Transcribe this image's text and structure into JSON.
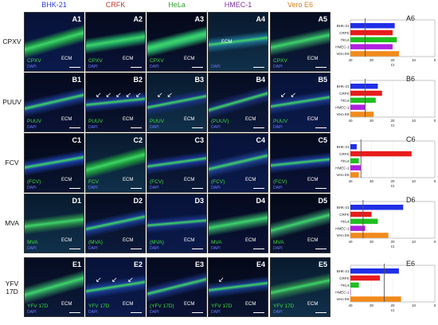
{
  "cell_lines": [
    {
      "name": "BHK-21",
      "color": "#2d3bd6"
    },
    {
      "name": "CRFK",
      "color": "#c0392b"
    },
    {
      "name": "HeLa",
      "color": "#2ea12e"
    },
    {
      "name": "HMEC-1",
      "color": "#7b2fa0"
    },
    {
      "name": "Vero E6",
      "color": "#d4801c"
    }
  ],
  "bar_colors": [
    "#1f2fe6",
    "#e81c1c",
    "#1fbf1f",
    "#b020e0",
    "#f28a1a"
  ],
  "rows": [
    {
      "label": "CPXV",
      "label2": "",
      "virus_label": "CPXV",
      "panels": [
        {
          "id": "A1",
          "virus_label": "CPXV",
          "ecm": "ECM",
          "arrows": ""
        },
        {
          "id": "A2",
          "virus_label": "CPXV",
          "ecm": "ECM",
          "arrows": ""
        },
        {
          "id": "A3",
          "virus_label": "CPXV",
          "ecm": "ECM",
          "arrows": ""
        },
        {
          "id": "A4",
          "virus_label": "",
          "ecm": "ECM",
          "arrows": ""
        },
        {
          "id": "A5",
          "virus_label": "CPXV",
          "ecm": "ECM",
          "arrows": ""
        }
      ]
    },
    {
      "label": "PUUV",
      "label2": "",
      "panels": [
        {
          "id": "B1",
          "virus_label": "PUUV",
          "ecm": "ECM",
          "arrows": ""
        },
        {
          "id": "B2",
          "virus_label": "PUUV",
          "ecm": "ECM",
          "arrows": "↙↙↙↙↙"
        },
        {
          "id": "B3",
          "virus_label": "PUUV",
          "ecm": "ECM",
          "arrows": "↙↙"
        },
        {
          "id": "B4",
          "virus_label": "(PUUV)",
          "ecm": "ECM",
          "arrows": ""
        },
        {
          "id": "B5",
          "virus_label": "PUUV",
          "ecm": "ECM",
          "arrows": "↙↙"
        }
      ]
    },
    {
      "label": "FCV",
      "label2": "",
      "panels": [
        {
          "id": "C1",
          "virus_label": "(FCV)",
          "ecm": "ECM",
          "arrows": ""
        },
        {
          "id": "C2",
          "virus_label": "FCV",
          "ecm": "ECM",
          "arrows": ""
        },
        {
          "id": "C3",
          "virus_label": "(FCV)",
          "ecm": "ECM",
          "arrows": ""
        },
        {
          "id": "C4",
          "virus_label": "(FCV)",
          "ecm": "ECM",
          "arrows": ""
        },
        {
          "id": "C5",
          "virus_label": "(FCV)",
          "ecm": "ECM",
          "arrows": ""
        }
      ]
    },
    {
      "label": "MVA",
      "label2": "",
      "panels": [
        {
          "id": "D1",
          "virus_label": "MVA",
          "ecm": "ECM",
          "arrows": ""
        },
        {
          "id": "D2",
          "virus_label": "(MVA)",
          "ecm": "ECM",
          "arrows": ""
        },
        {
          "id": "D3",
          "virus_label": "(MVA)",
          "ecm": "ECM",
          "arrows": ""
        },
        {
          "id": "D4",
          "virus_label": "MVA",
          "ecm": "ECM",
          "arrows": ""
        },
        {
          "id": "D5",
          "virus_label": "MVA",
          "ecm": "ECM",
          "arrows": ""
        }
      ]
    },
    {
      "label": "YFV",
      "label2": "17D",
      "panels": [
        {
          "id": "E1",
          "virus_label": "YFV 17D",
          "ecm": "ECM",
          "arrows": ""
        },
        {
          "id": "E2",
          "virus_label": "YFV 17D",
          "ecm": "ECM",
          "arrows": "↙ ↙  ↙"
        },
        {
          "id": "E3",
          "virus_label": "(YFV 17D)",
          "ecm": "ECM",
          "arrows": ""
        },
        {
          "id": "E4",
          "virus_label": "YFV 17D",
          "ecm": "ECM",
          "arrows": "↙"
        },
        {
          "id": "E5",
          "virus_label": "YFV 17D",
          "ecm": "ECM",
          "arrows": ""
        }
      ]
    }
  ],
  "dapi_label": "DAPI",
  "chart_axis_label": "Ct",
  "chart_data": [
    {
      "type": "bar",
      "id": "A6",
      "categories": [
        "BHK-21",
        "CRFK",
        "HeLa",
        "HMEC-1",
        "Vero E6"
      ],
      "values": [
        19,
        20,
        18,
        20,
        17
      ],
      "xlim": [
        40,
        0
      ],
      "xticks": [
        40,
        30,
        20,
        10,
        0
      ],
      "threshold": 33
    },
    {
      "type": "bar",
      "id": "B6",
      "categories": [
        "BHK-21",
        "CRFK",
        "HeLa",
        "HMEC-1",
        "Vero E6"
      ],
      "values": [
        27,
        25,
        28,
        33,
        29
      ],
      "xlim": [
        40,
        0
      ],
      "xticks": [
        40,
        30,
        20,
        10,
        0
      ],
      "threshold": 33
    },
    {
      "type": "bar",
      "id": "C6",
      "categories": [
        "BHK-21",
        "CRFK",
        "HeLa",
        "HMEC-1",
        "Vero E6"
      ],
      "values": [
        37,
        11,
        36,
        35,
        36
      ],
      "xlim": [
        40,
        0
      ],
      "xticks": [
        40,
        30,
        20,
        10,
        0
      ],
      "threshold": 35
    },
    {
      "type": "bar",
      "id": "D6",
      "categories": [
        "BHK-21",
        "CRFK",
        "HeLa",
        "HMEC-1",
        "Vero E6"
      ],
      "values": [
        15,
        30,
        27,
        33,
        22
      ],
      "xlim": [
        40,
        0
      ],
      "xticks": [
        40,
        30,
        20,
        10,
        0
      ],
      "threshold": 34
    },
    {
      "type": "bar",
      "id": "E6",
      "categories": [
        "BHK-21",
        "CRFK",
        "HeLa",
        "HMEC-1",
        "Vero E6"
      ],
      "values": [
        17,
        26,
        36,
        40,
        16
      ],
      "xlim": [
        40,
        0
      ],
      "xticks": [
        40,
        30,
        20,
        10,
        0
      ],
      "threshold": 24
    }
  ]
}
